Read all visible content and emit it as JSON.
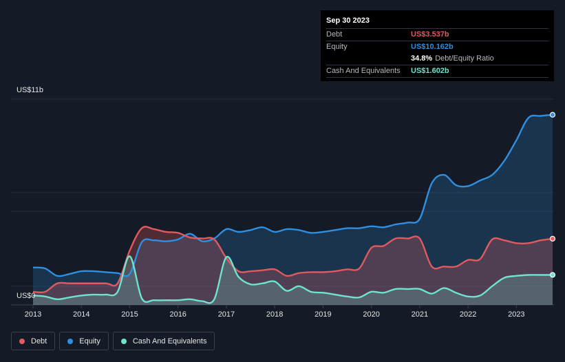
{
  "tooltip": {
    "date": "Sep 30 2023",
    "debt_label": "Debt",
    "debt_value": "US$3.537b",
    "equity_label": "Equity",
    "equity_value": "US$10.162b",
    "ratio_value": "34.8%",
    "ratio_label": "Debt/Equity Ratio",
    "cash_label": "Cash And Equivalents",
    "cash_value": "US$1.602b"
  },
  "legend": [
    {
      "label": "Debt",
      "color": "#e05a60"
    },
    {
      "label": "Equity",
      "color": "#2f8fe0"
    },
    {
      "label": "Cash And Equivalents",
      "color": "#6fe3cf"
    }
  ],
  "chart_data": {
    "type": "area",
    "ylim": [
      0,
      11
    ],
    "y_top_label": "US$11b",
    "y_bottom_label": "US$0",
    "x_ticks": [
      "2013",
      "2014",
      "2015",
      "2016",
      "2017",
      "2018",
      "2019",
      "2020",
      "2021",
      "2022",
      "2023"
    ],
    "xlim": [
      2013,
      2023.75
    ],
    "series": [
      {
        "name": "Debt",
        "color": "#e05a60",
        "points": [
          [
            2013,
            0.7
          ],
          [
            2013.25,
            0.7
          ],
          [
            2013.5,
            1.15
          ],
          [
            2013.75,
            1.15
          ],
          [
            2014,
            1.15
          ],
          [
            2014.5,
            1.15
          ],
          [
            2014.75,
            1.15
          ],
          [
            2015,
            2.9
          ],
          [
            2015.25,
            4.1
          ],
          [
            2015.5,
            4.05
          ],
          [
            2015.75,
            3.9
          ],
          [
            2016,
            3.85
          ],
          [
            2016.25,
            3.6
          ],
          [
            2016.5,
            3.55
          ],
          [
            2016.75,
            3.5
          ],
          [
            2017,
            2.5
          ],
          [
            2017.25,
            1.8
          ],
          [
            2017.5,
            1.8
          ],
          [
            2017.75,
            1.85
          ],
          [
            2018,
            1.9
          ],
          [
            2018.25,
            1.55
          ],
          [
            2018.5,
            1.7
          ],
          [
            2018.75,
            1.75
          ],
          [
            2019,
            1.75
          ],
          [
            2019.25,
            1.8
          ],
          [
            2019.5,
            1.9
          ],
          [
            2019.75,
            1.95
          ],
          [
            2020,
            3.05
          ],
          [
            2020.25,
            3.15
          ],
          [
            2020.5,
            3.55
          ],
          [
            2020.75,
            3.55
          ],
          [
            2021,
            3.55
          ],
          [
            2021.25,
            2.05
          ],
          [
            2021.5,
            2.05
          ],
          [
            2021.75,
            2.05
          ],
          [
            2022,
            2.4
          ],
          [
            2022.25,
            2.45
          ],
          [
            2022.5,
            3.5
          ],
          [
            2022.75,
            3.45
          ],
          [
            2023,
            3.3
          ],
          [
            2023.25,
            3.3
          ],
          [
            2023.5,
            3.45
          ],
          [
            2023.75,
            3.537
          ]
        ]
      },
      {
        "name": "Equity",
        "color": "#2f8fe0",
        "points": [
          [
            2013,
            2.0
          ],
          [
            2013.25,
            1.95
          ],
          [
            2013.5,
            1.55
          ],
          [
            2013.75,
            1.65
          ],
          [
            2014,
            1.8
          ],
          [
            2014.25,
            1.8
          ],
          [
            2014.5,
            1.75
          ],
          [
            2014.75,
            1.7
          ],
          [
            2015,
            1.65
          ],
          [
            2015.25,
            3.35
          ],
          [
            2015.5,
            3.45
          ],
          [
            2015.75,
            3.4
          ],
          [
            2016,
            3.5
          ],
          [
            2016.25,
            3.8
          ],
          [
            2016.5,
            3.4
          ],
          [
            2016.75,
            3.55
          ],
          [
            2017,
            4.05
          ],
          [
            2017.25,
            3.9
          ],
          [
            2017.5,
            4.0
          ],
          [
            2017.75,
            4.15
          ],
          [
            2018,
            3.9
          ],
          [
            2018.25,
            4.05
          ],
          [
            2018.5,
            4.0
          ],
          [
            2018.75,
            3.85
          ],
          [
            2019,
            3.9
          ],
          [
            2019.25,
            4.0
          ],
          [
            2019.5,
            4.1
          ],
          [
            2019.75,
            4.1
          ],
          [
            2020,
            4.2
          ],
          [
            2020.25,
            4.15
          ],
          [
            2020.5,
            4.3
          ],
          [
            2020.75,
            4.4
          ],
          [
            2021,
            4.6
          ],
          [
            2021.25,
            6.5
          ],
          [
            2021.5,
            6.95
          ],
          [
            2021.75,
            6.4
          ],
          [
            2022,
            6.35
          ],
          [
            2022.25,
            6.65
          ],
          [
            2022.5,
            6.95
          ],
          [
            2022.75,
            7.7
          ],
          [
            2023,
            8.8
          ],
          [
            2023.25,
            10.0
          ],
          [
            2023.5,
            10.1
          ],
          [
            2023.75,
            10.162
          ]
        ]
      },
      {
        "name": "Cash And Equivalents",
        "color": "#6fe3cf",
        "points": [
          [
            2013,
            0.5
          ],
          [
            2013.25,
            0.45
          ],
          [
            2013.5,
            0.3
          ],
          [
            2013.75,
            0.4
          ],
          [
            2014,
            0.5
          ],
          [
            2014.25,
            0.55
          ],
          [
            2014.5,
            0.55
          ],
          [
            2014.75,
            0.7
          ],
          [
            2015,
            2.6
          ],
          [
            2015.25,
            0.35
          ],
          [
            2015.5,
            0.25
          ],
          [
            2015.75,
            0.25
          ],
          [
            2016,
            0.25
          ],
          [
            2016.25,
            0.3
          ],
          [
            2016.5,
            0.2
          ],
          [
            2016.75,
            0.3
          ],
          [
            2017,
            2.55
          ],
          [
            2017.25,
            1.5
          ],
          [
            2017.5,
            1.1
          ],
          [
            2017.75,
            1.15
          ],
          [
            2018,
            1.25
          ],
          [
            2018.25,
            0.75
          ],
          [
            2018.5,
            1.0
          ],
          [
            2018.75,
            0.7
          ],
          [
            2019,
            0.65
          ],
          [
            2019.25,
            0.55
          ],
          [
            2019.5,
            0.45
          ],
          [
            2019.75,
            0.4
          ],
          [
            2020,
            0.7
          ],
          [
            2020.25,
            0.65
          ],
          [
            2020.5,
            0.85
          ],
          [
            2020.75,
            0.85
          ],
          [
            2021,
            0.85
          ],
          [
            2021.25,
            0.6
          ],
          [
            2021.5,
            0.9
          ],
          [
            2021.75,
            0.65
          ],
          [
            2022,
            0.45
          ],
          [
            2022.25,
            0.5
          ],
          [
            2022.5,
            1.0
          ],
          [
            2022.75,
            1.45
          ],
          [
            2023,
            1.55
          ],
          [
            2023.25,
            1.6
          ],
          [
            2023.5,
            1.6
          ],
          [
            2023.75,
            1.602
          ]
        ]
      }
    ]
  }
}
